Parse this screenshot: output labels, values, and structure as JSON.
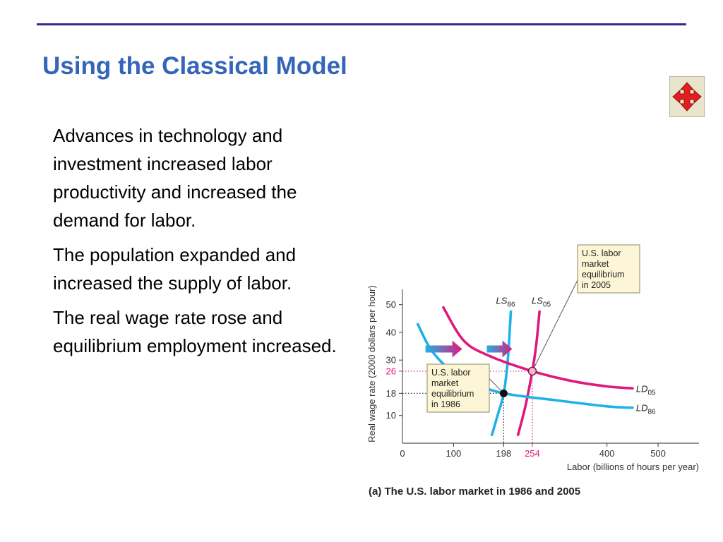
{
  "slide": {
    "title": "Using the Classical Model",
    "paragraphs": [
      "Advances in technology and investment increased labor productivity and increased the demand for labor.",
      "The population expanded and increased the supply of labor.",
      "The real wage rate rose and equilibrium employment increased."
    ],
    "nav_icon": "four-way-arrows-icon"
  },
  "colors": {
    "title": "#3465b8",
    "cyan": "#1fb2e6",
    "magenta": "#e0197d",
    "box_fill": "#fdf6d6"
  },
  "chart_data": {
    "type": "line",
    "caption": "(a) The U.S. labor market in 1986 and 2005",
    "xlabel": "Labor (billions of hours per year)",
    "ylabel": "Real wage rate (2000 dollars per hour)",
    "xlim": [
      0,
      580
    ],
    "ylim": [
      0,
      54
    ],
    "x_ticks": [
      "0",
      "100",
      "198",
      "254",
      "400",
      "500"
    ],
    "y_ticks": [
      "10",
      "18",
      "26",
      "30",
      "40",
      "50"
    ],
    "grid": false,
    "series": [
      {
        "name": "LS",
        "sub": "86",
        "color": "cyan",
        "x": [
          175,
          186,
          198,
          206,
          212
        ],
        "y": [
          3,
          10,
          18,
          30,
          47.5
        ]
      },
      {
        "name": "LS",
        "sub": "05",
        "color": "magenta",
        "x": [
          226,
          240,
          254,
          262,
          268
        ],
        "y": [
          3,
          13,
          26,
          36,
          47.5
        ]
      },
      {
        "name": "LD",
        "sub": "86",
        "color": "cyan",
        "x": [
          30,
          55,
          90,
          135,
          198,
          300,
          400,
          450
        ],
        "y": [
          43,
          34,
          27,
          22,
          18,
          15.5,
          13.3,
          12.8
        ]
      },
      {
        "name": "LD",
        "sub": "05",
        "color": "magenta",
        "x": [
          80,
          120,
          170,
          254,
          330,
          400,
          450
        ],
        "y": [
          49,
          37,
          31.5,
          26,
          22.5,
          20.5,
          19.8
        ]
      }
    ],
    "equilibria": [
      {
        "x": 198,
        "y": 18,
        "label": "U.S. labor market equilibrium in 1986",
        "lines": [
          "U.S. labor",
          "market",
          "equilibrium",
          "in 1986"
        ]
      },
      {
        "x": 254,
        "y": 26,
        "label": "U.S. labor market equilibrium in 2005",
        "lines": [
          "U.S. labor",
          "market",
          "equilibrium",
          "in 2005"
        ]
      }
    ]
  }
}
